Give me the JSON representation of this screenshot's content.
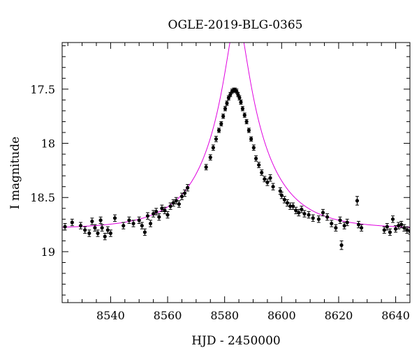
{
  "chart_data": {
    "type": "scatter",
    "title": "OGLE-2019-BLG-0365",
    "xlabel": "HJD - 2450000",
    "ylabel": "I magnitude",
    "xlim": [
      8523,
      8645
    ],
    "ylim": [
      19.47,
      17.07
    ],
    "y_inverted": true,
    "grid": false,
    "x_ticks": [
      8540,
      8560,
      8580,
      8600,
      8620,
      8640
    ],
    "y_ticks": [
      17.5,
      18,
      18.5,
      19
    ],
    "y_tick_labels": [
      "17.5",
      "18",
      "18.5",
      "19"
    ],
    "model_color": "#e000e0",
    "point_color": "#000000",
    "model": {
      "type": "point-lens",
      "t0": 8584.3,
      "u0": 0.166,
      "tE": 19.5,
      "baseline_mag": 18.79
    },
    "series": [
      {
        "x": [
          8524.0,
          8526.5,
          8529.5,
          8531.0,
          8532.5,
          8533.5,
          8534.5,
          8535.5,
          8536.5,
          8537.0,
          8538.0,
          8539.0,
          8540.0,
          8541.5,
          8544.5,
          8546.5,
          8548.0,
          8550.0,
          8551.0,
          8552.0,
          8553.0,
          8554.0,
          8555.0,
          8556.0,
          8557.0,
          8558.0,
          8559.0,
          8560.0,
          8561.0,
          8562.0,
          8563.0,
          8564.0,
          8565.0,
          8566.0,
          8567.0,
          8573.5,
          8575.0,
          8576.0,
          8577.0,
          8578.0,
          8578.8,
          8579.5,
          8580.2,
          8580.8,
          8581.4,
          8582.0,
          8582.6,
          8583.2,
          8583.7,
          8584.2,
          8584.7,
          8585.2,
          8585.7,
          8586.3,
          8587.0,
          8587.7,
          8588.5,
          8589.3,
          8590.2,
          8591.0,
          8592.0,
          8593.0,
          8594.0,
          8595.0,
          8596.0,
          8597.0,
          8599.5,
          8600.0,
          8601.0,
          8602.0,
          8603.0,
          8604.0,
          8605.0,
          8606.0,
          8607.0,
          8608.0,
          8609.5,
          8611.0,
          8613.0,
          8614.5,
          8616.0,
          8617.5,
          8619.0,
          8620.5,
          8621.0,
          8622.0,
          8623.0,
          8626.5,
          8627.0,
          8628.0,
          8636.0,
          8637.0,
          8638.0,
          8639.0,
          8640.0,
          8641.0,
          8642.0,
          8643.0,
          8644.0,
          8645.0
        ],
        "y": [
          18.77,
          18.73,
          18.76,
          18.8,
          18.83,
          18.72,
          18.78,
          18.83,
          18.71,
          18.78,
          18.86,
          18.8,
          18.83,
          18.69,
          18.76,
          18.71,
          18.74,
          18.71,
          18.76,
          18.82,
          18.67,
          18.74,
          18.65,
          18.63,
          18.68,
          18.6,
          18.62,
          18.66,
          18.58,
          18.55,
          18.53,
          18.56,
          18.49,
          18.46,
          18.41,
          18.22,
          18.13,
          18.04,
          17.96,
          17.88,
          17.82,
          17.75,
          17.68,
          17.63,
          17.58,
          17.55,
          17.52,
          17.51,
          17.51,
          17.52,
          17.55,
          17.58,
          17.62,
          17.68,
          17.74,
          17.8,
          17.88,
          17.96,
          18.04,
          18.14,
          18.2,
          18.27,
          18.33,
          18.36,
          18.32,
          18.4,
          18.44,
          18.48,
          18.52,
          18.55,
          18.58,
          18.58,
          18.62,
          18.64,
          18.61,
          18.65,
          18.66,
          18.69,
          18.7,
          18.64,
          18.68,
          18.74,
          18.78,
          18.71,
          18.94,
          18.76,
          18.73,
          18.53,
          18.75,
          18.78,
          18.8,
          18.77,
          18.82,
          18.7,
          18.79,
          18.76,
          18.75,
          18.78,
          18.8,
          18.81
        ],
        "error": [
          0.03,
          0.03,
          0.03,
          0.03,
          0.03,
          0.03,
          0.03,
          0.03,
          0.03,
          0.03,
          0.03,
          0.03,
          0.03,
          0.03,
          0.03,
          0.03,
          0.03,
          0.03,
          0.03,
          0.03,
          0.03,
          0.03,
          0.03,
          0.03,
          0.03,
          0.03,
          0.03,
          0.03,
          0.03,
          0.03,
          0.03,
          0.03,
          0.03,
          0.03,
          0.03,
          0.025,
          0.025,
          0.025,
          0.025,
          0.02,
          0.02,
          0.02,
          0.02,
          0.02,
          0.02,
          0.02,
          0.02,
          0.02,
          0.02,
          0.02,
          0.02,
          0.02,
          0.02,
          0.02,
          0.02,
          0.02,
          0.02,
          0.02,
          0.025,
          0.025,
          0.025,
          0.025,
          0.025,
          0.03,
          0.03,
          0.03,
          0.03,
          0.03,
          0.03,
          0.03,
          0.03,
          0.03,
          0.03,
          0.03,
          0.03,
          0.03,
          0.03,
          0.03,
          0.03,
          0.03,
          0.03,
          0.03,
          0.03,
          0.03,
          0.04,
          0.03,
          0.03,
          0.04,
          0.03,
          0.03,
          0.03,
          0.03,
          0.03,
          0.03,
          0.03,
          0.03,
          0.03,
          0.03,
          0.03,
          0.03
        ]
      }
    ]
  }
}
